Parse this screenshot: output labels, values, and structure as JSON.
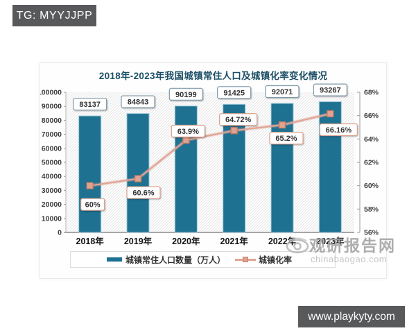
{
  "overlays": {
    "top_banner": "TG: MYYJJPP",
    "bottom_banner": "www.playkyty.com"
  },
  "watermark": {
    "name": "观研报告网",
    "domain": "chinabaogao.com"
  },
  "chart_data": {
    "type": "bar+line",
    "title": "2018年-2023年我国城镇常住人口及城镇化率变化情况",
    "categories": [
      "2018年",
      "2019年",
      "2020年",
      "2021年",
      "2022年",
      "2023年"
    ],
    "series": [
      {
        "name": "城镇常住人口数量（万人）",
        "type": "bar",
        "axis": "left",
        "values": [
          83137,
          84843,
          90199,
          91425,
          92071,
          93267
        ],
        "labels": [
          "83137",
          "84843",
          "90199",
          "91425",
          "92071",
          "93267"
        ],
        "color": "#1e7191",
        "edge_color": "#9fcbda"
      },
      {
        "name": "城镇化率",
        "type": "line",
        "axis": "right",
        "values": [
          60,
          60.6,
          63.9,
          64.72,
          65.2,
          66.16
        ],
        "labels": [
          "60%",
          "60.6%",
          "63.9%",
          "64.72%",
          "65.2%",
          "66.16%"
        ],
        "color": "#dfa495",
        "marker_fill": "#e2a291",
        "marker_edge": "#bf7d62",
        "label_box_edge": "#d9a08d"
      }
    ],
    "left_axis": {
      "min": 0,
      "max": 100000,
      "step": 10000,
      "ticks": [
        "0",
        "10000",
        "20000",
        "30000",
        "40000",
        "50000",
        "60000",
        "70000",
        "80000",
        "90000",
        "100000"
      ]
    },
    "right_axis": {
      "min": 56,
      "max": 68,
      "step": 2,
      "ticks": [
        "56%",
        "58%",
        "60%",
        "62%",
        "64%",
        "66%",
        "68%"
      ]
    },
    "grid": false,
    "legend_position": "bottom",
    "plot_background": "diagonal-hatch",
    "bar_label_box_edge": "#7f99a9"
  }
}
